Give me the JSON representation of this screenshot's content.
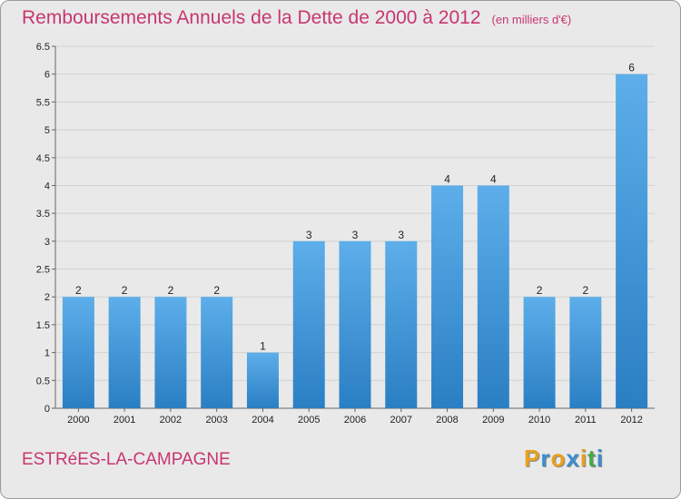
{
  "header": {
    "title": "Remboursements Annuels de la Dette de 2000 à 2012",
    "unit": "(en milliers d'€)"
  },
  "footer": {
    "commune": "ESTRéES-LA-CAMPAGNE",
    "logo": [
      "P",
      "r",
      "o",
      "x",
      "i",
      "t",
      "i"
    ]
  },
  "colors": {
    "title": "#c8366e",
    "bar_light": "#5daeea",
    "bar_dark": "#2a7fc3",
    "background": "#e9e9e9",
    "logo": [
      "#e8a020",
      "#3b8ed0",
      "#e8a020",
      "#3b8ed0",
      "#e8a020",
      "#44aa44",
      "#3b8ed0"
    ]
  },
  "chart_data": {
    "type": "bar",
    "title": "Remboursements Annuels de la Dette de 2000 à 2012",
    "xlabel": "",
    "ylabel": "en milliers d'€",
    "categories": [
      "2000",
      "2001",
      "2002",
      "2003",
      "2004",
      "2005",
      "2006",
      "2007",
      "2008",
      "2009",
      "2010",
      "2011",
      "2012"
    ],
    "values": [
      2,
      2,
      2,
      2,
      1,
      3,
      3,
      3,
      4,
      4,
      2,
      2,
      6
    ],
    "data_labels": [
      "2",
      "2",
      "2",
      "2",
      "1",
      "3",
      "3",
      "3",
      "4",
      "4",
      "2",
      "2",
      "6"
    ],
    "ylim": [
      0,
      6.5
    ],
    "yticks": [
      0,
      0.5,
      1,
      1.5,
      2,
      2.5,
      3,
      3.5,
      4,
      4.5,
      5,
      5.5,
      6,
      6.5
    ],
    "ytick_labels": [
      "0",
      "0.5",
      "1",
      "1.5",
      "2",
      "2.5",
      "3",
      "3.5",
      "4",
      "4.5",
      "5",
      "5.5",
      "6",
      "6.5"
    ],
    "grid": true,
    "legend": "none"
  }
}
